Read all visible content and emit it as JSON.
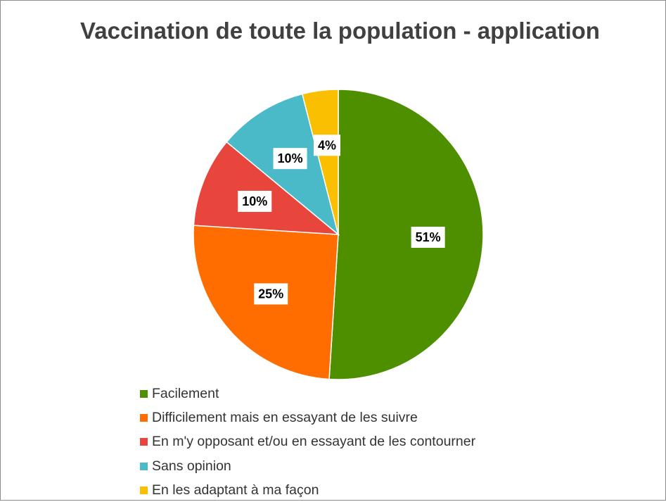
{
  "chart_data": {
    "type": "pie",
    "title": "Vaccination de toute la population - application",
    "categories": [
      "Facilement",
      "Difficilement mais en essayant de les suivre",
      "En m'y opposant et/ou en essayant de les contourner",
      "Sans opinion",
      "En les adaptant à ma façon"
    ],
    "values": [
      51,
      25,
      10,
      10,
      4
    ],
    "data_labels": [
      "51%",
      "25%",
      "10%",
      "10%",
      "4%"
    ],
    "colors": [
      "#4e8f00",
      "#ff6d00",
      "#e8453c",
      "#4bbac8",
      "#f9bf00"
    ],
    "legend_position": "bottom",
    "start_angle_deg": 0,
    "direction": "clockwise"
  }
}
